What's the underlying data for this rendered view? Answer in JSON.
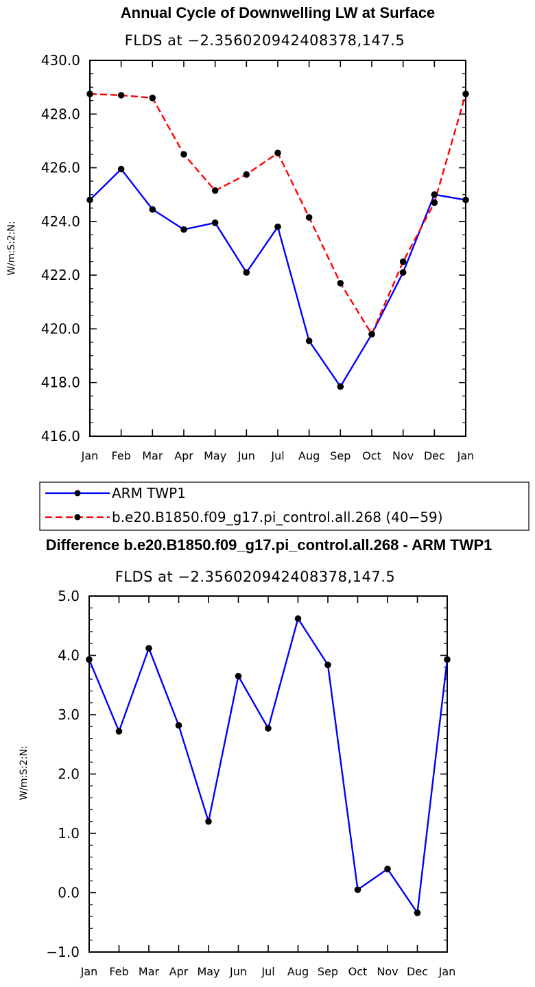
{
  "chart_data": [
    {
      "type": "line",
      "title": "Annual Cycle of Downwelling LW at Surface",
      "subtitle": "FLDS at −2.356020942408378,147.5",
      "xlabel": "",
      "ylabel": "W/m:S:2:N:",
      "categories": [
        "Jan",
        "Feb",
        "Mar",
        "Apr",
        "May",
        "Jun",
        "Jul",
        "Aug",
        "Sep",
        "Oct",
        "Nov",
        "Dec",
        "Jan"
      ],
      "ylim": [
        416.0,
        430.0
      ],
      "yticks": [
        "416.0",
        "418.0",
        "420.0",
        "422.0",
        "424.0",
        "426.0",
        "428.0",
        "430.0"
      ],
      "series": [
        {
          "name": "ARM TWP1",
          "color": "#0000ff",
          "dash": "solid",
          "values": [
            424.8,
            425.95,
            424.45,
            423.7,
            423.95,
            422.1,
            423.8,
            419.55,
            417.85,
            419.8,
            422.1,
            425.0,
            424.8
          ]
        },
        {
          "name": "b.e20.B1850.f09_g17.pi_control.all.268 (40−59)",
          "color": "#ff0000",
          "dash": "dashed",
          "values": [
            428.75,
            428.7,
            428.6,
            426.5,
            425.15,
            425.75,
            426.55,
            424.15,
            421.7,
            419.8,
            422.5,
            424.7,
            428.75
          ]
        }
      ],
      "legend": {
        "position": "bottom",
        "entries": [
          "ARM TWP1",
          "b.e20.B1850.f09_g17.pi_control.all.268 (40−59)"
        ]
      }
    },
    {
      "type": "line",
      "title": "Difference b.e20.B1850.f09_g17.pi_control.all.268 - ARM TWP1",
      "subtitle": "FLDS at −2.356020942408378,147.5",
      "xlabel": "",
      "ylabel": "W/m:S:2:N:",
      "categories": [
        "Jan",
        "Feb",
        "Mar",
        "Apr",
        "May",
        "Jun",
        "Jul",
        "Aug",
        "Sep",
        "Oct",
        "Nov",
        "Dec",
        "Jan"
      ],
      "ylim": [
        -1.0,
        5.0
      ],
      "yticks": [
        "−1.0",
        "0.0",
        "1.0",
        "2.0",
        "3.0",
        "4.0",
        "5.0"
      ],
      "series": [
        {
          "name": "Difference",
          "color": "#0000ff",
          "dash": "solid",
          "values": [
            3.93,
            2.72,
            4.12,
            2.82,
            1.2,
            3.65,
            2.77,
            4.62,
            3.84,
            0.05,
            0.4,
            -0.34,
            3.93
          ]
        }
      ]
    }
  ]
}
